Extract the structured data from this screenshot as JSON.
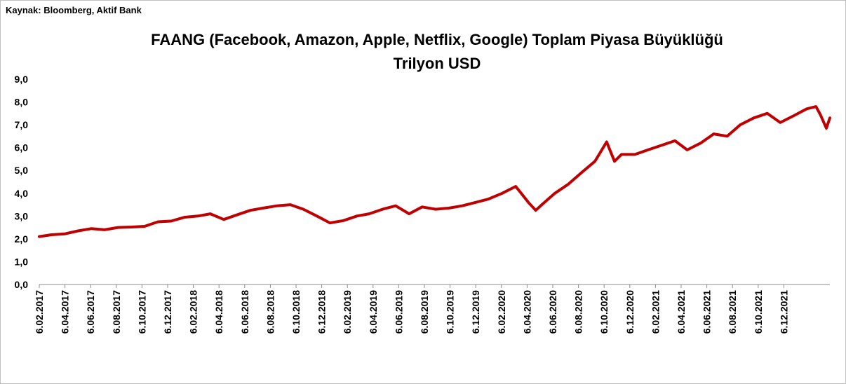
{
  "source": "Kaynak: Bloomberg, Aktif Bank",
  "chart_data": {
    "type": "line",
    "title": "FAANG (Facebook, Amazon, Apple, Netflix, Google) Toplam Piyasa Büyüklüğü",
    "subtitle": "Trilyon USD",
    "xlabel": "",
    "ylabel": "",
    "ylim": [
      0,
      9
    ],
    "yticks": [
      "0,0",
      "1,0",
      "2,0",
      "3,0",
      "4,0",
      "5,0",
      "6,0",
      "7,0",
      "8,0",
      "9,0"
    ],
    "xticks": [
      "6.02.2017",
      "6.04.2017",
      "6.06.2017",
      "6.08.2017",
      "6.10.2017",
      "6.12.2017",
      "6.02.2018",
      "6.04.2018",
      "6.06.2018",
      "6.08.2018",
      "6.10.2018",
      "6.12.2018",
      "6.02.2019",
      "6.04.2019",
      "6.06.2019",
      "6.08.2019",
      "6.10.2019",
      "6.12.2019",
      "6.02.2020",
      "6.04.2020",
      "6.06.2020",
      "6.08.2020",
      "6.10.2020",
      "6.12.2020",
      "6.02.2021",
      "6.04.2021",
      "6.06.2021",
      "6.08.2021",
      "6.10.2021",
      "6.12.2021"
    ],
    "grid": false,
    "color": "#c00000",
    "series": [
      {
        "name": "",
        "x": [
          "2017-02-06",
          "2017-03-06",
          "2017-04-06",
          "2017-05-06",
          "2017-06-06",
          "2017-07-06",
          "2017-08-06",
          "2017-09-06",
          "2017-10-06",
          "2017-11-06",
          "2017-12-06",
          "2018-01-06",
          "2018-02-06",
          "2018-03-06",
          "2018-04-06",
          "2018-05-06",
          "2018-06-06",
          "2018-07-06",
          "2018-08-06",
          "2018-09-06",
          "2018-10-06",
          "2018-11-06",
          "2018-12-06",
          "2019-01-06",
          "2019-02-06",
          "2019-03-06",
          "2019-04-06",
          "2019-05-06",
          "2019-06-06",
          "2019-07-06",
          "2019-08-06",
          "2019-09-06",
          "2019-10-06",
          "2019-11-06",
          "2019-12-06",
          "2020-01-06",
          "2020-02-06",
          "2020-03-06",
          "2020-03-23",
          "2020-04-06",
          "2020-05-06",
          "2020-06-06",
          "2020-07-06",
          "2020-08-06",
          "2020-09-02",
          "2020-09-20",
          "2020-10-06",
          "2020-11-06",
          "2020-12-06",
          "2021-01-06",
          "2021-02-06",
          "2021-03-06",
          "2021-04-06",
          "2021-05-06",
          "2021-06-06",
          "2021-07-06",
          "2021-08-06",
          "2021-09-06",
          "2021-10-06",
          "2021-11-06",
          "2021-12-06",
          "2021-12-27",
          "2022-01-06",
          "2022-01-20",
          "2022-01-28"
        ],
        "values": [
          2.1,
          2.18,
          2.22,
          2.35,
          2.45,
          2.4,
          2.5,
          2.52,
          2.55,
          2.75,
          2.78,
          2.95,
          3.0,
          3.1,
          2.85,
          3.05,
          3.25,
          3.35,
          3.45,
          3.5,
          3.3,
          3.0,
          2.7,
          2.8,
          3.0,
          3.1,
          3.3,
          3.45,
          3.1,
          3.4,
          3.3,
          3.35,
          3.45,
          3.6,
          3.75,
          4.0,
          4.3,
          3.6,
          3.25,
          3.5,
          4.0,
          4.4,
          4.9,
          5.4,
          6.25,
          5.4,
          5.7,
          5.7,
          5.9,
          6.1,
          6.3,
          5.9,
          6.2,
          6.6,
          6.5,
          7.0,
          7.3,
          7.5,
          7.1,
          7.4,
          7.7,
          7.8,
          7.45,
          6.85,
          7.3
        ]
      }
    ]
  }
}
